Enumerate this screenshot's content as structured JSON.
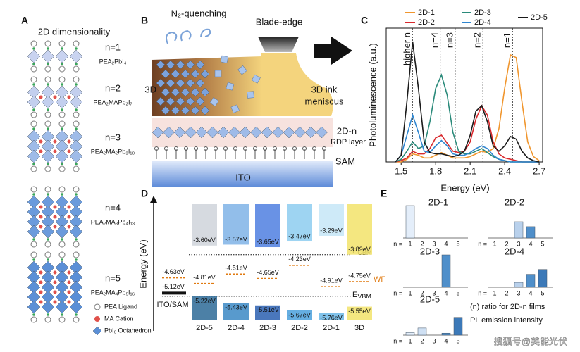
{
  "panel_a": {
    "letter": "A",
    "title": "2D dimensionality",
    "rows": [
      {
        "n": "n=1",
        "formula": "PEA₂PbI₄"
      },
      {
        "n": "n=2",
        "formula": "PEA₂MAPb₂I₇"
      },
      {
        "n": "n=3",
        "formula": "PEA₂MA₂Pb₃I₁₀"
      },
      {
        "n": "n=4",
        "formula": "PEA₂MA₃Pb₄I₁₃"
      },
      {
        "n": "n=5",
        "formula": "PEA₂MA₄Pb₅I₁₆"
      }
    ],
    "legend": [
      "PEA Ligand",
      "MA Cation",
      "PbI₆ Octahedron"
    ]
  },
  "panel_b": {
    "letter": "B",
    "quenching": "N₂-quenching",
    "blade": "Blade-edge",
    "bulk": "3D",
    "ink": "3D ink",
    "meniscus": "meniscus",
    "layer": "2D-n",
    "layer_sub": "RDP layer",
    "sam": "SAM",
    "ito": "ITO"
  },
  "panel_c": {
    "letter": "C",
    "type": "line",
    "x_label": "Energy (eV)",
    "y_label": "Photoluminescence (a.u.)",
    "x": [
      1.45,
      1.5,
      1.55,
      1.6,
      1.65,
      1.7,
      1.75,
      1.8,
      1.85,
      1.9,
      1.95,
      2.0,
      2.05,
      2.1,
      2.15,
      2.2,
      2.25,
      2.3,
      2.35,
      2.4,
      2.45,
      2.5,
      2.55,
      2.6,
      2.65,
      2.7
    ],
    "xlim": [
      1.37,
      2.73
    ],
    "xticks": [
      1.5,
      1.8,
      2.1,
      2.4,
      2.7
    ],
    "ylim": [
      0,
      1
    ],
    "series": [
      {
        "name": "2D-1",
        "color": "#f0962e",
        "values": [
          0,
          0,
          0.02,
          0.06,
          0.05,
          0.03,
          0.03,
          0.05,
          0.07,
          0.05,
          0.03,
          0.03,
          0.03,
          0.04,
          0.06,
          0.08,
          0.07,
          0.1,
          0.25,
          0.55,
          0.8,
          0.78,
          0.45,
          0.15,
          0.04,
          0.01
        ]
      },
      {
        "name": "2D-2",
        "color": "#d8282c",
        "values": [
          0,
          0.01,
          0.03,
          0.08,
          0.06,
          0.06,
          0.1,
          0.18,
          0.2,
          0.14,
          0.08,
          0.07,
          0.08,
          0.15,
          0.32,
          0.42,
          0.35,
          0.15,
          0.06,
          0.03,
          0.02,
          0.01,
          0,
          0,
          0,
          0
        ]
      },
      {
        "name": "2D-3",
        "color": "#2a8a7a",
        "values": [
          0,
          0.02,
          0.08,
          0.15,
          0.1,
          0.12,
          0.3,
          0.55,
          0.65,
          0.5,
          0.22,
          0.08,
          0.06,
          0.06,
          0.08,
          0.1,
          0.07,
          0.04,
          0.02,
          0.01,
          0,
          0,
          0,
          0,
          0,
          0
        ]
      },
      {
        "name": "2D-4",
        "color": "#2f86d0",
        "values": [
          0,
          0.05,
          0.2,
          0.35,
          0.22,
          0.08,
          0.07,
          0.12,
          0.16,
          0.12,
          0.06,
          0.05,
          0.05,
          0.07,
          0.1,
          0.12,
          0.1,
          0.05,
          0.02,
          0.01,
          0,
          0,
          0,
          0,
          0,
          0
        ]
      },
      {
        "name": "2D-5",
        "color": "#1a1a1a",
        "values": [
          0,
          0.05,
          0.45,
          0.9,
          0.55,
          0.15,
          0.07,
          0.06,
          0.06,
          0.05,
          0.04,
          0.05,
          0.08,
          0.2,
          0.38,
          0.42,
          0.3,
          0.12,
          0.08,
          0.12,
          0.19,
          0.17,
          0.08,
          0.03,
          0.01,
          0
        ]
      }
    ],
    "annotations": [
      {
        "text": "higher n",
        "x": 1.6
      },
      {
        "text": "n=4",
        "x": 1.84
      },
      {
        "text": "n=3",
        "x": 1.97
      },
      {
        "text": "n=2",
        "x": 2.21
      },
      {
        "text": "n=1",
        "x": 2.47
      }
    ]
  },
  "panel_d": {
    "letter": "D",
    "y_label": "Energy (eV)",
    "substrate": "ITO/SAM",
    "substrate_wf": {
      "value": -4.63,
      "label": "-4.63eV"
    },
    "substrate_level": {
      "value": -5.12,
      "label": "-5.12eV"
    },
    "cbm_tag": {
      "main": "E",
      "sub": "CBM"
    },
    "wf_tag": "WF",
    "vbm_tag": {
      "main": "E",
      "sub": "VBM"
    },
    "columns": [
      {
        "name": "2D-5",
        "cbm": {
          "value": -3.6,
          "label": "-3.60eV"
        },
        "wf": {
          "value": -4.81,
          "label": "-4.81eV"
        },
        "vbm": {
          "value": -5.22,
          "label": "-5.22eV"
        }
      },
      {
        "name": "2D-4",
        "cbm": {
          "value": -3.57,
          "label": "-3.57eV"
        },
        "wf": {
          "value": -4.51,
          "label": "-4.51eV"
        },
        "vbm": {
          "value": -5.43,
          "label": "-5.43eV"
        }
      },
      {
        "name": "2D-3",
        "cbm": {
          "value": -3.65,
          "label": "-3.65eV"
        },
        "wf": {
          "value": -4.65,
          "label": "-4.65eV"
        },
        "vbm": {
          "value": -5.51,
          "label": "-5.51eV"
        }
      },
      {
        "name": "2D-2",
        "cbm": {
          "value": -3.47,
          "label": "-3.47eV"
        },
        "wf": {
          "value": -4.23,
          "label": "-4.23eV"
        },
        "vbm": {
          "value": -5.67,
          "label": "-5.67eV"
        }
      },
      {
        "name": "2D-1",
        "cbm": {
          "value": -3.29,
          "label": "-3.29eV"
        },
        "wf": {
          "value": -4.91,
          "label": "-4.91eV"
        },
        "vbm": {
          "value": -5.76,
          "label": "-5.76eV"
        }
      },
      {
        "name": "3D",
        "cbm": {
          "value": -3.89,
          "label": "-3.89eV"
        },
        "wf": {
          "value": -4.75,
          "label": "-4.75eV"
        },
        "vbm": {
          "value": -5.55,
          "label": "-5.55eV"
        }
      }
    ]
  },
  "panel_e": {
    "letter": "E",
    "axis_prefix": "n =",
    "categories": [
      "1",
      "2",
      "3",
      "4",
      "5"
    ],
    "colors": [
      "#e4eefa",
      "#cfe0f3",
      "#b9d1ec",
      "#4f8fca",
      "#3c79b8"
    ],
    "charts": [
      {
        "title": "2D-1",
        "values": [
          1,
          0,
          0,
          0,
          0
        ]
      },
      {
        "title": "2D-2",
        "values": [
          0,
          0,
          0.5,
          0.35,
          0
        ]
      },
      {
        "title": "2D-3",
        "values": [
          0,
          0,
          0,
          1,
          0
        ]
      },
      {
        "title": "2D-4",
        "values": [
          0,
          0,
          0.15,
          0.4,
          0.55
        ]
      },
      {
        "title": "2D-5",
        "values": [
          0.08,
          0.22,
          0,
          0.06,
          0.55
        ]
      }
    ],
    "note_1": "(n) ratio for 2D-n films",
    "note_2": "PL emission intensity"
  },
  "watermark": "搜狐号@美能光伏"
}
